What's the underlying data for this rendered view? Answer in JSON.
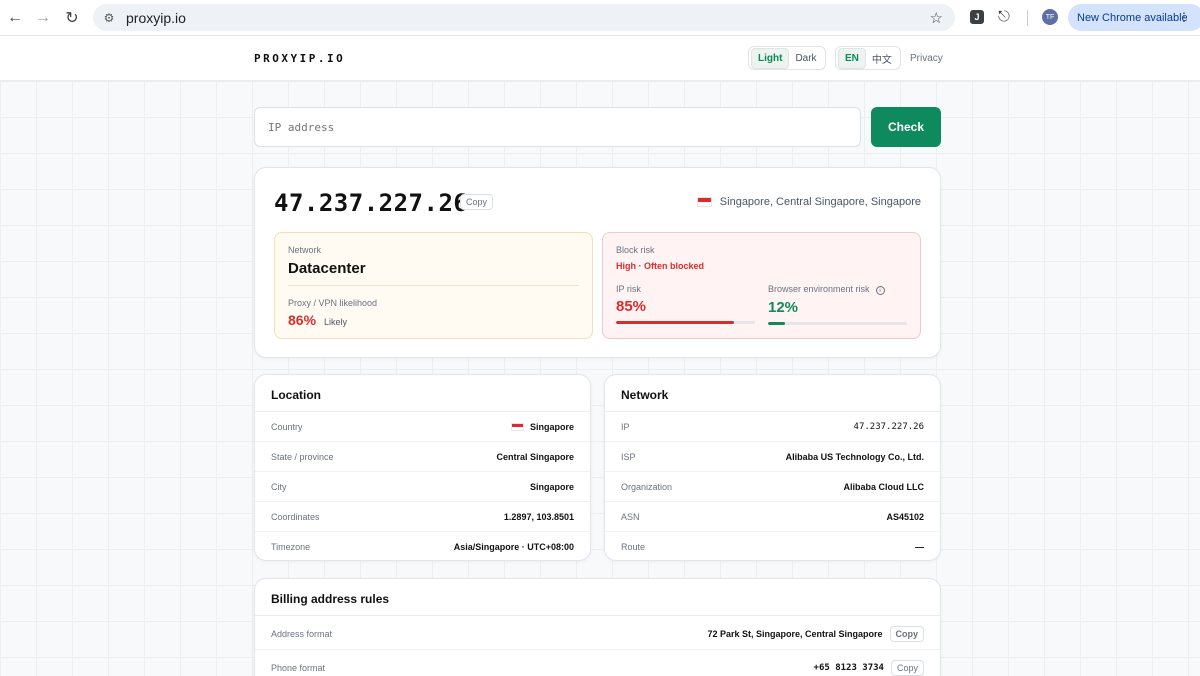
{
  "browser": {
    "url": "proxyip.io",
    "update_label": "New Chrome available",
    "avatar_initials": "TF",
    "extension_letter": "J"
  },
  "header": {
    "logo": "PROXYIP.IO",
    "theme_options": [
      "Light",
      "Dark"
    ],
    "theme_active": "Light",
    "lang_options": [
      "EN",
      "中文"
    ],
    "lang_active": "EN",
    "privacy": "Privacy"
  },
  "search": {
    "placeholder": "IP address",
    "button": "Check"
  },
  "summary": {
    "ip": "47.237.227.26",
    "copy": "Copy",
    "location": "Singapore, Central Singapore, Singapore",
    "network_label": "Network",
    "network_type": "Datacenter",
    "proxy_label": "Proxy / VPN likelihood",
    "proxy_pct": "86%",
    "proxy_word": "Likely",
    "block_label": "Block risk",
    "block_status": "High · Often blocked",
    "ip_risk_label": "IP risk",
    "ip_risk_value": "85%",
    "ip_risk_fraction": 0.85,
    "env_risk_label": "Browser environment risk",
    "env_risk_value": "12%",
    "env_risk_fraction": 0.12
  },
  "location": {
    "title": "Location",
    "rows": [
      {
        "k": "Country",
        "v": "Singapore"
      },
      {
        "k": "State / province",
        "v": "Central Singapore"
      },
      {
        "k": "City",
        "v": "Singapore"
      },
      {
        "k": "Coordinates",
        "v": "1.2897, 103.8501"
      },
      {
        "k": "Timezone",
        "v": "Asia/Singapore · UTC+08:00"
      }
    ]
  },
  "network": {
    "title": "Network",
    "rows": [
      {
        "k": "IP",
        "v": "47.237.227.26"
      },
      {
        "k": "ISP",
        "v": "Alibaba US Technology Co., Ltd."
      },
      {
        "k": "Organization",
        "v": "Alibaba Cloud LLC"
      },
      {
        "k": "ASN",
        "v": "AS45102"
      },
      {
        "k": "Route",
        "v": "—"
      }
    ]
  },
  "billing": {
    "title": "Billing address rules",
    "rows": [
      {
        "k": "Address format",
        "v": "72 Park St, Singapore, Central Singapore",
        "copy": "Copy"
      },
      {
        "k": "Phone format",
        "v": "+65 8123 3734",
        "copy": "Copy"
      }
    ]
  },
  "colors": {
    "accent": "#0f8a5f",
    "danger": "#d92d2d",
    "success": "#0f8a5f"
  }
}
